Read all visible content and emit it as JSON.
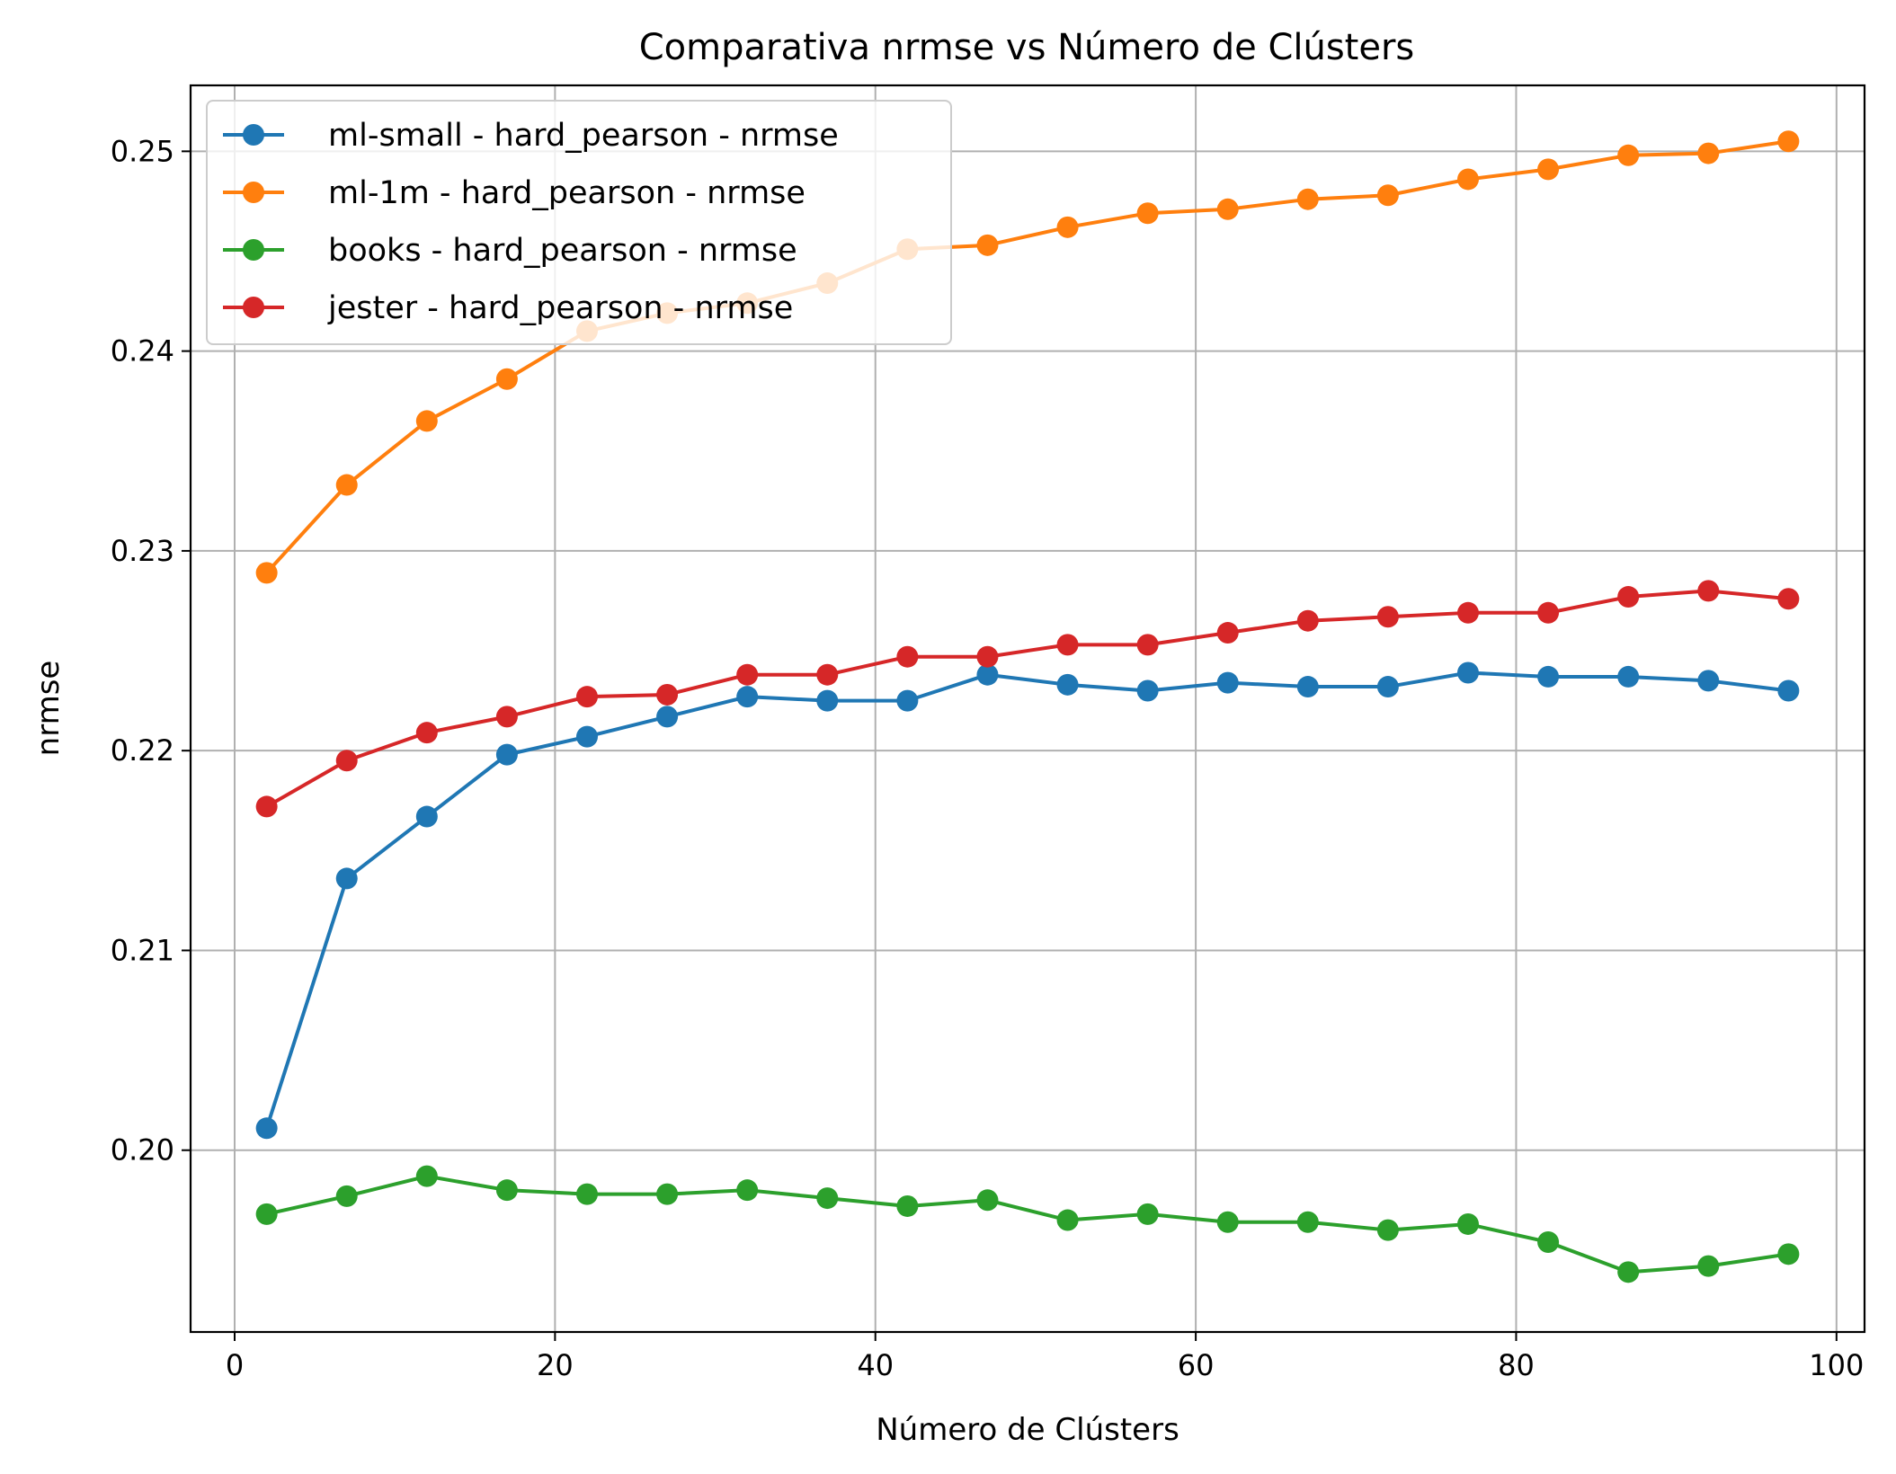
{
  "chart_data": {
    "type": "line",
    "title": "Comparativa nrmse vs Número de Clústers",
    "xlabel": "Número de Clústers",
    "ylabel": "nrmse",
    "xlim": [
      -2.75,
      101.75
    ],
    "ylim": [
      0.1909,
      0.2533
    ],
    "xticks": [
      0,
      20,
      40,
      60,
      80,
      100
    ],
    "xtick_labels": [
      "0",
      "20",
      "40",
      "60",
      "80",
      "100"
    ],
    "yticks": [
      0.2,
      0.21,
      0.22,
      0.23,
      0.24,
      0.25
    ],
    "ytick_labels": [
      "0.20",
      "0.21",
      "0.22",
      "0.23",
      "0.24",
      "0.25"
    ],
    "grid": true,
    "legend_position": "upper-left",
    "x": [
      2,
      7,
      12,
      17,
      22,
      27,
      32,
      37,
      42,
      47,
      52,
      57,
      62,
      67,
      72,
      77,
      82,
      87,
      92,
      97
    ],
    "series": [
      {
        "name": "ml-small - hard_pearson - nrmse",
        "color": "#1f77b4",
        "values": [
          0.2011,
          0.2136,
          0.2167,
          0.2198,
          0.2207,
          0.2217,
          0.2227,
          0.2225,
          0.2225,
          0.2238,
          0.2233,
          0.223,
          0.2234,
          0.2232,
          0.2232,
          0.2239,
          0.2237,
          0.2237,
          0.2235,
          0.223
        ]
      },
      {
        "name": "ml-1m - hard_pearson - nrmse",
        "color": "#ff7f0e",
        "values": [
          0.2289,
          0.2333,
          0.2365,
          0.2386,
          0.241,
          0.2419,
          0.2424,
          0.2434,
          0.2451,
          0.2453,
          0.2462,
          0.2469,
          0.2471,
          0.2476,
          0.2478,
          0.2486,
          0.2491,
          0.2498,
          0.2499,
          0.2505
        ]
      },
      {
        "name": "books - hard_pearson - nrmse",
        "color": "#2ca02c",
        "values": [
          0.1968,
          0.1977,
          0.1987,
          0.198,
          0.1978,
          0.1978,
          0.198,
          0.1976,
          0.1972,
          0.1975,
          0.1965,
          0.1968,
          0.1964,
          0.1964,
          0.196,
          0.1963,
          0.1954,
          0.1939,
          0.1942,
          0.1948
        ]
      },
      {
        "name": "jester - hard_pearson - nrmse",
        "color": "#d62728",
        "values": [
          0.2172,
          0.2195,
          0.2209,
          0.2217,
          0.2227,
          0.2228,
          0.2238,
          0.2238,
          0.2247,
          0.2247,
          0.2253,
          0.2253,
          0.2259,
          0.2265,
          0.2267,
          0.2269,
          0.2269,
          0.2277,
          0.228,
          0.2276
        ]
      }
    ]
  }
}
